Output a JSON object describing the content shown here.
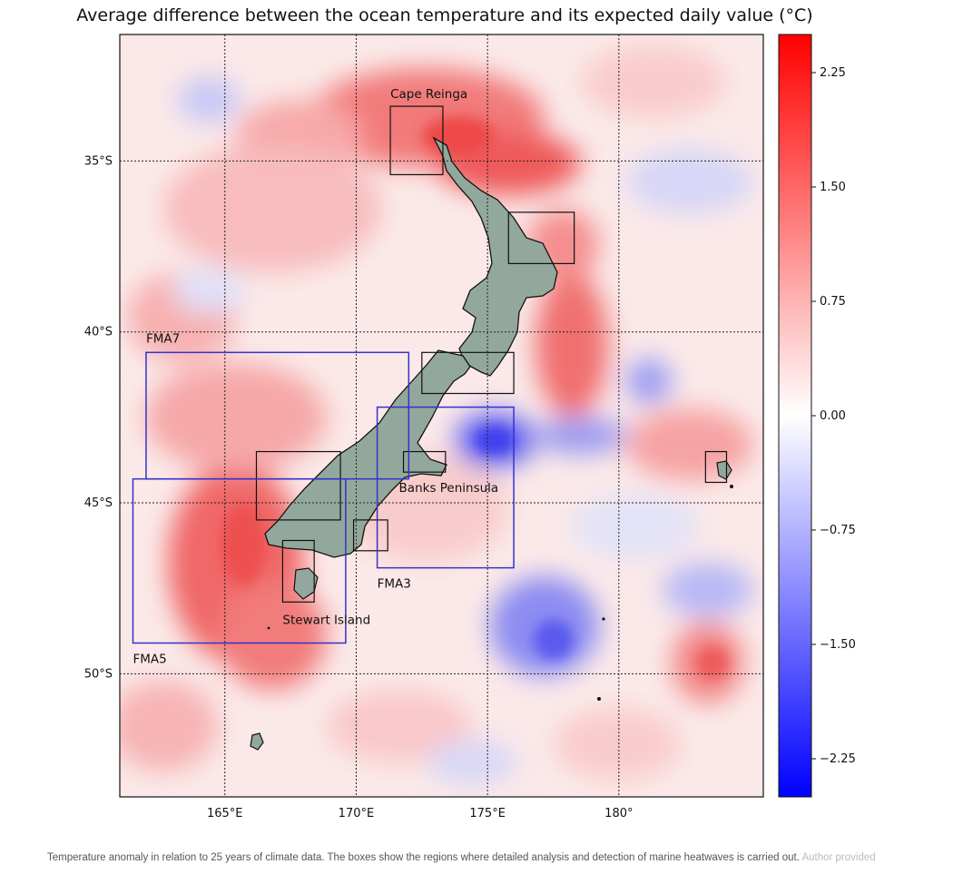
{
  "title": "Average difference between the ocean temperature and its expected daily value (°C)",
  "map": {
    "lat_labels": [
      {
        "lat": -35,
        "label": "35°S"
      },
      {
        "lat": -40,
        "label": "40°S"
      },
      {
        "lat": -45,
        "label": "45°S"
      },
      {
        "lat": -50,
        "label": "50°S"
      }
    ],
    "lon_labels": [
      {
        "lon": 165,
        "label": "165°E"
      },
      {
        "lon": 170,
        "label": "170°E"
      },
      {
        "lon": 175,
        "label": "175°E"
      },
      {
        "lon": 180,
        "label": "180°"
      }
    ],
    "extent": {
      "lon_min": 161.0,
      "lon_max": 185.5,
      "lat_max": -31.3,
      "lat_min": -53.6
    },
    "grid": true,
    "regions": [
      {
        "name": "cape-reinga-box",
        "label": "Cape Reinga",
        "lon": [
          171.3,
          173.3
        ],
        "lat": [
          -33.4,
          -35.4
        ],
        "color": "#111111"
      },
      {
        "name": "bay-of-plenty-box",
        "label": "",
        "lon": [
          175.8,
          178.3
        ],
        "lat": [
          -36.5,
          -38.0
        ],
        "color": "#111111"
      },
      {
        "name": "cook-strait-box",
        "label": "",
        "lon": [
          172.5,
          176.0
        ],
        "lat": [
          -40.6,
          -41.8
        ],
        "color": "#111111"
      },
      {
        "name": "banks-peninsula-box",
        "label": "Banks Peninsula",
        "lon": [
          171.8,
          173.4
        ],
        "lat": [
          -43.5,
          -44.1
        ],
        "color": "#111111"
      },
      {
        "name": "fiordland-box",
        "label": "",
        "lon": [
          166.2,
          169.4
        ],
        "lat": [
          -43.5,
          -45.5
        ],
        "color": "#111111"
      },
      {
        "name": "otago-box",
        "label": "",
        "lon": [
          169.9,
          171.2
        ],
        "lat": [
          -45.5,
          -46.4
        ],
        "color": "#111111"
      },
      {
        "name": "stewart-island-box",
        "label": "Stewart Island",
        "lon": [
          167.2,
          168.4
        ],
        "lat": [
          -46.1,
          -47.9
        ],
        "color": "#111111"
      },
      {
        "name": "chatham-islands-box",
        "label": "",
        "lon": [
          183.3,
          184.1
        ],
        "lat": [
          -43.5,
          -44.4
        ],
        "color": "#111111"
      },
      {
        "name": "fma7-box",
        "label": "FMA7",
        "lon": [
          162.0,
          172.0
        ],
        "lat": [
          -40.6,
          -44.3
        ],
        "color": "#3333cc"
      },
      {
        "name": "fma3-box",
        "label": "FMA3",
        "lon": [
          170.8,
          176.0
        ],
        "lat": [
          -42.2,
          -46.9
        ],
        "color": "#3333cc"
      },
      {
        "name": "fma5-box",
        "label": "FMA5",
        "lon": [
          161.5,
          169.6
        ],
        "lat": [
          -44.3,
          -49.1
        ],
        "color": "#3333cc"
      }
    ]
  },
  "colorbar": {
    "min": -2.5,
    "max": 2.5,
    "ticks": [
      {
        "value": 2.25,
        "label": "2.25"
      },
      {
        "value": 1.5,
        "label": "1.50"
      },
      {
        "value": 0.75,
        "label": "0.75"
      },
      {
        "value": 0.0,
        "label": "0.00"
      },
      {
        "value": -0.75,
        "label": "−0.75"
      },
      {
        "value": -1.5,
        "label": "−1.50"
      },
      {
        "value": -2.25,
        "label": "−2.25"
      }
    ],
    "color_high": "#ff0000",
    "color_mid": "#ffffff",
    "color_low": "#0000ff"
  },
  "caption": {
    "text": "Temperature anomaly in relation to 25 years of climate data. The boxes show the regions where detailed analysis and detection of marine heatwaves is carried out.",
    "credit": "Author provided"
  }
}
